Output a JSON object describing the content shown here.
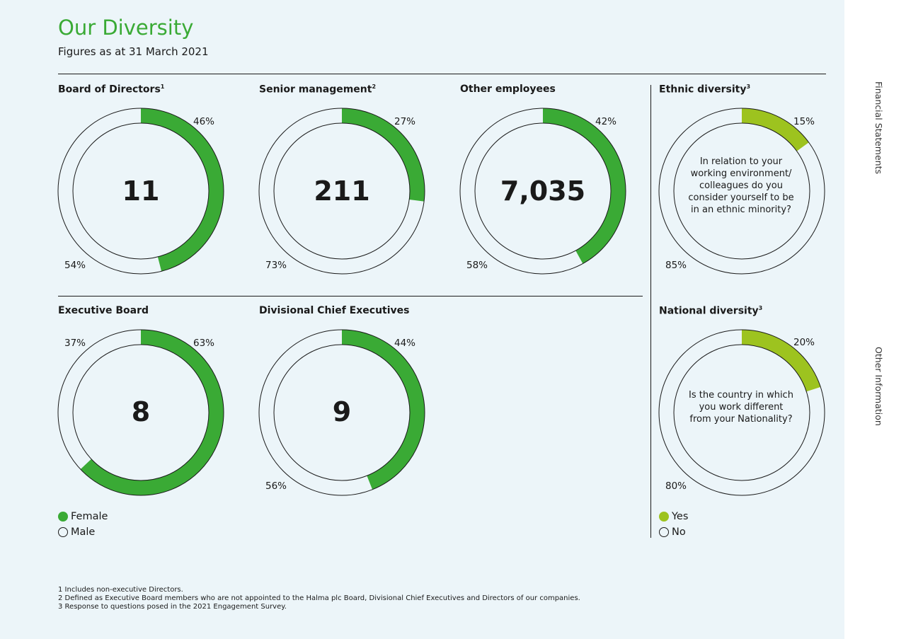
{
  "title": "Our Diversity",
  "subtitle": "Figures as at 31 March 2021",
  "colors": {
    "female": "#3aaa35",
    "yes": "#9dc31f",
    "outline": "#1a1a1a",
    "panel": "#ecf5f9"
  },
  "side_nav": {
    "top": "Financial Statements",
    "bottom": "Other Information"
  },
  "legend_gender": {
    "female": "Female",
    "male": "Male"
  },
  "legend_response": {
    "yes": "Yes",
    "no": "No"
  },
  "chart_data": [
    {
      "type": "pie",
      "title": "Board of Directors",
      "superscript": "1",
      "total": "11",
      "series": [
        {
          "name": "Female",
          "value": 46,
          "label": "46%"
        },
        {
          "name": "Male",
          "value": 54,
          "label": "54%"
        }
      ]
    },
    {
      "type": "pie",
      "title": "Senior management",
      "superscript": "2",
      "total": "211",
      "series": [
        {
          "name": "Female",
          "value": 27,
          "label": "27%"
        },
        {
          "name": "Male",
          "value": 73,
          "label": "73%"
        }
      ]
    },
    {
      "type": "pie",
      "title": "Other employees",
      "superscript": "",
      "total": "7,035",
      "series": [
        {
          "name": "Female",
          "value": 42,
          "label": "42%"
        },
        {
          "name": "Male",
          "value": 58,
          "label": "58%"
        }
      ]
    },
    {
      "type": "pie",
      "title": "Ethnic diversity",
      "superscript": "3",
      "question": "In relation to your working environment/ colleagues do you consider yourself to be in an ethnic minority?",
      "series": [
        {
          "name": "Yes",
          "value": 15,
          "label": "15%"
        },
        {
          "name": "No",
          "value": 85,
          "label": "85%"
        }
      ]
    },
    {
      "type": "pie",
      "title": "Executive Board",
      "superscript": "",
      "total": "8",
      "series": [
        {
          "name": "Female",
          "value": 63,
          "label": "63%"
        },
        {
          "name": "Male",
          "value": 37,
          "label": "37%"
        }
      ]
    },
    {
      "type": "pie",
      "title": "Divisional Chief Executives",
      "superscript": "",
      "total": "9",
      "series": [
        {
          "name": "Female",
          "value": 44,
          "label": "44%"
        },
        {
          "name": "Male",
          "value": 56,
          "label": "56%"
        }
      ]
    },
    {
      "type": "pie",
      "title": "National diversity",
      "superscript": "3",
      "question": "Is the country in which you work different from your Nationality?",
      "series": [
        {
          "name": "Yes",
          "value": 20,
          "label": "20%"
        },
        {
          "name": "No",
          "value": 80,
          "label": "80%"
        }
      ]
    }
  ],
  "footnotes": [
    "1  Includes non-executive Directors.",
    "2  Defined as Executive Board members who are not appointed to the Halma plc Board, Divisional Chief Executives and Directors of our companies.",
    "3  Response to questions posed in the 2021 Engagement Survey."
  ]
}
